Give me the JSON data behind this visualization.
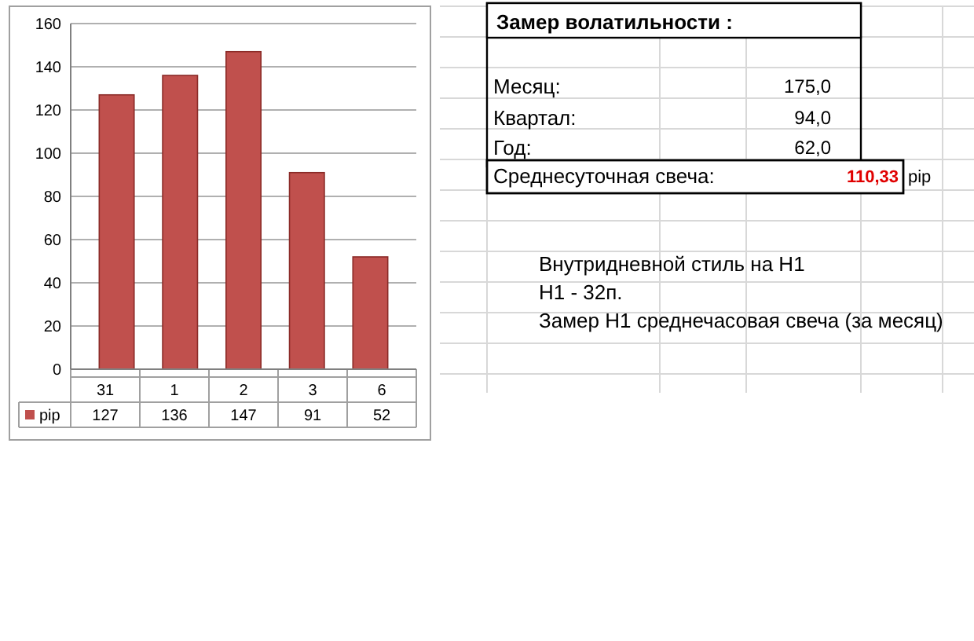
{
  "chart_data": [
    {
      "type": "bar",
      "categories": [
        "31",
        "1",
        "2",
        "3",
        "6"
      ],
      "series": [
        {
          "name": "pip",
          "color": "#c0504d",
          "values": [
            127,
            136,
            147,
            91,
            52
          ]
        }
      ],
      "ylim": [
        0,
        160
      ],
      "yticks": [
        0,
        20,
        40,
        60,
        80,
        100,
        120,
        140,
        160
      ],
      "grid": "y",
      "data_labels": true,
      "legend": "bottom"
    },
    {
      "type": "other",
      "title": "Замер  волатильности  :",
      "annotations": [
        "Месяц:",
        "175,0",
        "Квартал:",
        "94,0",
        "Год:",
        "62,0",
        "Среднесуточная свеча:",
        "110,33",
        "pip",
        "Внутридневной стиль на H1",
        "H1 - 32п.",
        "Замер H1 среднечасовая свеча (за месяц)"
      ]
    }
  ]
}
